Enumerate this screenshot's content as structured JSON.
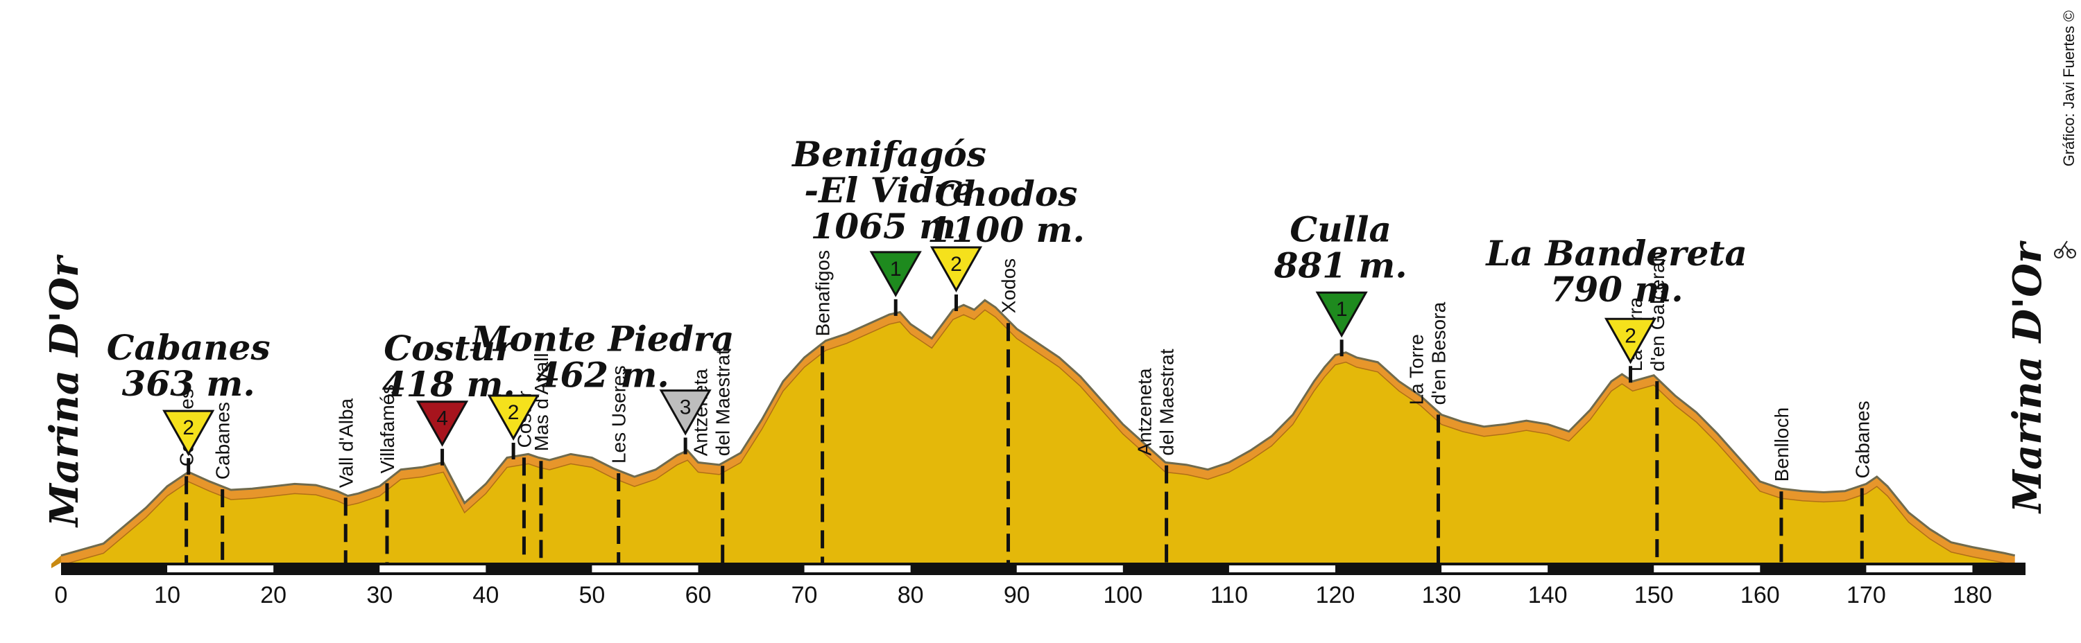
{
  "chart_data": {
    "type": "area",
    "xlim": [
      0,
      185
    ],
    "ylim": [
      0,
      1400
    ],
    "x_ticks": [
      0,
      10,
      20,
      30,
      40,
      50,
      60,
      70,
      80,
      90,
      100,
      110,
      120,
      130,
      140,
      150,
      160,
      170,
      180
    ],
    "profile": [
      [
        0,
        30
      ],
      [
        4,
        80
      ],
      [
        8,
        230
      ],
      [
        10,
        320
      ],
      [
        12,
        380
      ],
      [
        14,
        340
      ],
      [
        16,
        305
      ],
      [
        18,
        310
      ],
      [
        20,
        320
      ],
      [
        22,
        330
      ],
      [
        24,
        325
      ],
      [
        26,
        300
      ],
      [
        27,
        280
      ],
      [
        28,
        290
      ],
      [
        30,
        320
      ],
      [
        32,
        390
      ],
      [
        34,
        400
      ],
      [
        36,
        420
      ],
      [
        38,
        250
      ],
      [
        40,
        330
      ],
      [
        42,
        440
      ],
      [
        44,
        455
      ],
      [
        45,
        440
      ],
      [
        46,
        430
      ],
      [
        48,
        455
      ],
      [
        50,
        440
      ],
      [
        52,
        395
      ],
      [
        54,
        360
      ],
      [
        56,
        390
      ],
      [
        58,
        450
      ],
      [
        59,
        470
      ],
      [
        60,
        420
      ],
      [
        62,
        410
      ],
      [
        64,
        460
      ],
      [
        66,
        600
      ],
      [
        68,
        760
      ],
      [
        70,
        860
      ],
      [
        72,
        930
      ],
      [
        74,
        960
      ],
      [
        76,
        1000
      ],
      [
        78,
        1040
      ],
      [
        79,
        1050
      ],
      [
        80,
        1000
      ],
      [
        82,
        940
      ],
      [
        84,
        1060
      ],
      [
        85,
        1080
      ],
      [
        86,
        1060
      ],
      [
        87,
        1100
      ],
      [
        88,
        1070
      ],
      [
        90,
        980
      ],
      [
        92,
        920
      ],
      [
        94,
        860
      ],
      [
        96,
        780
      ],
      [
        98,
        680
      ],
      [
        100,
        580
      ],
      [
        102,
        500
      ],
      [
        104,
        420
      ],
      [
        106,
        410
      ],
      [
        108,
        390
      ],
      [
        110,
        420
      ],
      [
        112,
        470
      ],
      [
        114,
        530
      ],
      [
        116,
        620
      ],
      [
        118,
        760
      ],
      [
        119,
        820
      ],
      [
        120,
        870
      ],
      [
        121,
        881
      ],
      [
        122,
        860
      ],
      [
        124,
        840
      ],
      [
        126,
        760
      ],
      [
        128,
        700
      ],
      [
        130,
        620
      ],
      [
        132,
        590
      ],
      [
        134,
        570
      ],
      [
        136,
        580
      ],
      [
        138,
        595
      ],
      [
        140,
        580
      ],
      [
        142,
        550
      ],
      [
        144,
        640
      ],
      [
        146,
        760
      ],
      [
        147,
        790
      ],
      [
        148,
        760
      ],
      [
        150,
        785
      ],
      [
        152,
        700
      ],
      [
        154,
        630
      ],
      [
        156,
        540
      ],
      [
        158,
        440
      ],
      [
        160,
        340
      ],
      [
        162,
        310
      ],
      [
        164,
        300
      ],
      [
        166,
        295
      ],
      [
        168,
        300
      ],
      [
        170,
        330
      ],
      [
        171,
        360
      ],
      [
        172,
        320
      ],
      [
        174,
        210
      ],
      [
        176,
        140
      ],
      [
        178,
        85
      ],
      [
        180,
        65
      ],
      [
        183,
        40
      ],
      [
        184,
        30
      ]
    ],
    "start_label": "Marina D'Or",
    "end_label": "Marina D'Or",
    "towns": [
      {
        "km": 11.8,
        "label": [
          "Cabanes"
        ]
      },
      {
        "km": 15.2,
        "label": [
          "Cabanes"
        ]
      },
      {
        "km": 26.8,
        "label": [
          "Vall d'Alba"
        ]
      },
      {
        "km": 30.7,
        "label": [
          "Villafamés"
        ]
      },
      {
        "km": 43.6,
        "label": [
          "Costur"
        ]
      },
      {
        "km": 45.2,
        "label": [
          "Mas d'Avall"
        ]
      },
      {
        "km": 52.5,
        "label": [
          "Les Useres"
        ]
      },
      {
        "km": 62.3,
        "label": [
          "Antzeneta",
          "del Maestrat"
        ]
      },
      {
        "km": 71.7,
        "label": [
          "Benafigos"
        ]
      },
      {
        "km": 89.2,
        "label": [
          "Xodos"
        ]
      },
      {
        "km": 104.1,
        "label": [
          "Antzeneta",
          "del Maestrat"
        ]
      },
      {
        "km": 129.7,
        "label": [
          "La Torre",
          "d'en Besora"
        ]
      },
      {
        "km": 150.3,
        "label": [
          "La Serra",
          "d'en Galceran"
        ]
      },
      {
        "km": 162.0,
        "label": [
          "Benlloch"
        ]
      },
      {
        "km": 169.6,
        "label": [
          "Cabanes"
        ]
      }
    ],
    "climbs": [
      {
        "km": 12.0,
        "cat": "2",
        "color": "#f5e11c",
        "text_color": "#222"
      },
      {
        "km": 35.9,
        "cat": "4",
        "color": "#a7141d",
        "text_color": "#fff"
      },
      {
        "km": 42.6,
        "cat": "2",
        "color": "#f5e11c",
        "text_color": "#222"
      },
      {
        "km": 58.8,
        "cat": "3",
        "color": "#bdbdbd",
        "text_color": "#222"
      },
      {
        "km": 78.6,
        "cat": "1",
        "color": "#1e8a1e",
        "text_color": "#fff"
      },
      {
        "km": 84.3,
        "cat": "2",
        "color": "#f5e11c",
        "text_color": "#222"
      },
      {
        "km": 120.6,
        "cat": "1",
        "color": "#1e8a1e",
        "text_color": "#fff"
      },
      {
        "km": 147.8,
        "cat": "2",
        "color": "#f5e11c",
        "text_color": "#222"
      }
    ],
    "peaks": [
      {
        "km": 12.0,
        "lines": [
          "Cabanes",
          "363 m."
        ]
      },
      {
        "km": 36.5,
        "lines": [
          "Costur",
          "418 m."
        ]
      },
      {
        "km": 51.0,
        "lines": [
          "Monte Piedra",
          "462 m."
        ]
      },
      {
        "km": 78.0,
        "lines": [
          "Benifagós",
          "-El Vidre",
          "1065 m."
        ]
      },
      {
        "km": 89.0,
        "lines": [
          "Chodos",
          "1100 m."
        ]
      },
      {
        "km": 120.5,
        "lines": [
          "Culla",
          "881 m."
        ]
      },
      {
        "km": 146.5,
        "lines": [
          "La Bandereta",
          "790 m."
        ]
      }
    ],
    "credit": "Gráfico: Javi Fuertes ©",
    "colors": {
      "fill": "#e4b80a",
      "band": "#e7962b",
      "outline": "#6f6a4d",
      "axis_dark": "#111111",
      "axis_light": "#ffffff"
    }
  }
}
